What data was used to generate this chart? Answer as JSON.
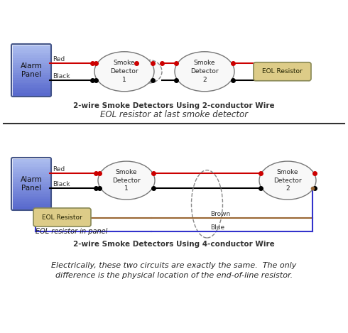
{
  "bg_color": "#ffffff",
  "panel_color_top": "#aabbee",
  "panel_color_bottom": "#6677cc",
  "eol_color": "#ddcc88",
  "detector_fill": "#f0f0f0",
  "title1": "2-wire Smoke Detectors Using 2-conductor Wire",
  "subtitle1": "EOL resistor at last smoke detector",
  "title2": "2-wire Smoke Detectors Using 4-conductor Wire",
  "caption": "Electrically, these two circuits are exactly the same.  The only\ndifference is the physical location of the end-of-line resistor.",
  "eol_label": "EOL Resistor",
  "panel_label": "Alarm\nPanel",
  "sd1_label": "Smoke\nDetector\n1",
  "sd2_label": "Smoke\nDetector\n2",
  "red_color": "#cc0000",
  "black_color": "#000000",
  "brown_color": "#996633",
  "blue_color": "#3333cc"
}
